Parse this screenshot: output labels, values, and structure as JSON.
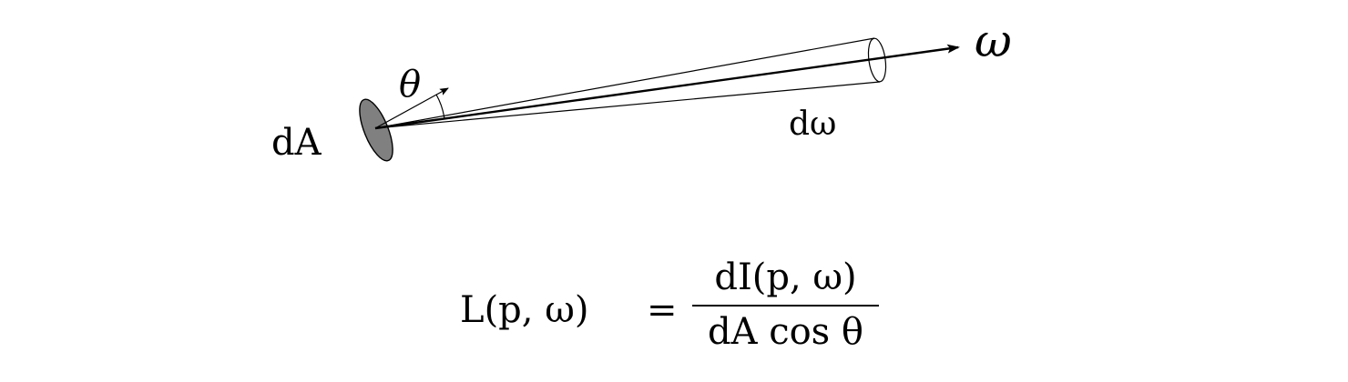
{
  "labels": {
    "area": "dA",
    "theta": "θ",
    "omega": "ω",
    "solid_angle": "dω"
  },
  "formula": {
    "lhs": "L(p, ω)",
    "equals": "=",
    "numerator": "dI(p, ω)",
    "denominator": "dA cos θ"
  },
  "colors": {
    "patch_fill": "#808080",
    "line": "#000000",
    "background": "#ffffff"
  }
}
